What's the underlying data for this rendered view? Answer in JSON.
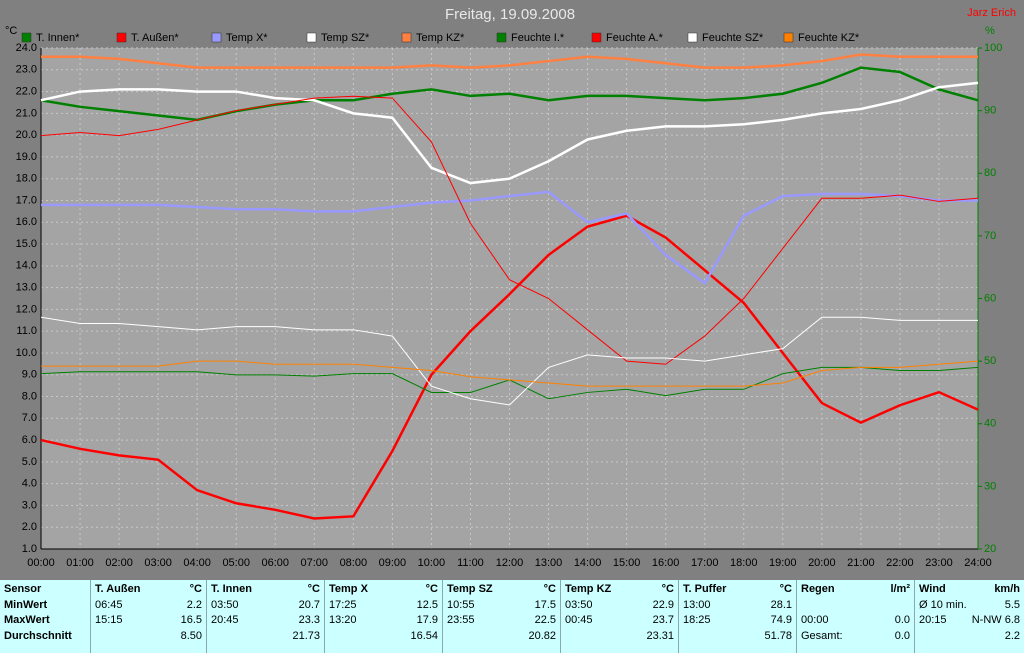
{
  "chart_data": {
    "type": "line",
    "title": "Freitag, 19.09.2008",
    "author": "Jarz Erich",
    "ylabel": "°C",
    "y2label": "%",
    "categories": [
      "00:00",
      "01:00",
      "02:00",
      "03:00",
      "04:00",
      "05:00",
      "06:00",
      "07:00",
      "08:00",
      "09:00",
      "10:00",
      "11:00",
      "12:00",
      "13:00",
      "14:00",
      "15:00",
      "16:00",
      "17:00",
      "18:00",
      "19:00",
      "20:00",
      "21:00",
      "22:00",
      "23:00",
      "24:00"
    ],
    "ylim": [
      1,
      24
    ],
    "yticks": [
      {
        "value": 1,
        "label": "1.0"
      },
      {
        "value": 2,
        "label": "2.0"
      },
      {
        "value": 3,
        "label": "3.0"
      },
      {
        "value": 4,
        "label": "4.0"
      },
      {
        "value": 5,
        "label": "5.0"
      },
      {
        "value": 6,
        "label": "6.0"
      },
      {
        "value": 7,
        "label": "7.0"
      },
      {
        "value": 8,
        "label": "8.0"
      },
      {
        "value": 9,
        "label": "9.0"
      },
      {
        "value": 10,
        "label": "10.0"
      },
      {
        "value": 11,
        "label": "11.0"
      },
      {
        "value": 12,
        "label": "12.0"
      },
      {
        "value": 13,
        "label": "13.0"
      },
      {
        "value": 14,
        "label": "14.0"
      },
      {
        "value": 15,
        "label": "15.0"
      },
      {
        "value": 16,
        "label": "16.0"
      },
      {
        "value": 17,
        "label": "17.0"
      },
      {
        "value": 18,
        "label": "18.0"
      },
      {
        "value": 19,
        "label": "19.0"
      },
      {
        "value": 20,
        "label": "20.0"
      },
      {
        "value": 21,
        "label": "21.0"
      },
      {
        "value": 22,
        "label": "22.0"
      },
      {
        "value": 23,
        "label": "23.0"
      },
      {
        "value": 24,
        "label": "24.0"
      }
    ],
    "y2lim": [
      20,
      100
    ],
    "y2ticks": [
      20,
      30,
      40,
      50,
      60,
      70,
      80,
      90,
      100
    ],
    "grid": true,
    "series": [
      {
        "name": "T. Innen*",
        "color": "#008000",
        "width": 2.5,
        "values": [
          21.6,
          21.3,
          21.1,
          20.9,
          20.7,
          21.1,
          21.4,
          21.6,
          21.6,
          21.9,
          22.1,
          21.8,
          21.9,
          21.6,
          21.8,
          21.8,
          21.7,
          21.6,
          21.7,
          21.9,
          22.4,
          23.1,
          22.9,
          22.1,
          21.6
        ]
      },
      {
        "name": "T. Außen*",
        "color": "#ff0000",
        "width": 2.5,
        "values": [
          6.0,
          5.6,
          5.3,
          5.1,
          3.7,
          3.1,
          2.8,
          2.4,
          2.5,
          5.5,
          9.0,
          11.0,
          12.7,
          14.5,
          15.8,
          16.3,
          15.3,
          13.8,
          12.3,
          10.0,
          7.7,
          6.8,
          7.6,
          8.2,
          7.4
        ]
      },
      {
        "name": "Temp X*",
        "color": "#9999ff",
        "width": 2.5,
        "values": [
          16.8,
          16.8,
          16.8,
          16.8,
          16.7,
          16.6,
          16.6,
          16.5,
          16.5,
          16.7,
          16.9,
          17.0,
          17.2,
          17.4,
          16.0,
          16.4,
          14.5,
          13.2,
          16.3,
          17.2,
          17.3,
          17.3,
          17.2,
          17.0,
          17.0
        ]
      },
      {
        "name": "Temp SZ*",
        "color": "#ffffff",
        "width": 2.5,
        "values": [
          21.6,
          22.0,
          22.1,
          22.1,
          22.0,
          22.0,
          21.7,
          21.6,
          21.0,
          20.8,
          18.5,
          17.8,
          18.0,
          18.8,
          19.8,
          20.2,
          20.4,
          20.4,
          20.5,
          20.7,
          21.0,
          21.2,
          21.6,
          22.2,
          22.4
        ]
      },
      {
        "name": "Temp KZ*",
        "color": "#ff8040",
        "width": 2.5,
        "values": [
          23.6,
          23.6,
          23.5,
          23.3,
          23.1,
          23.1,
          23.1,
          23.1,
          23.1,
          23.1,
          23.2,
          23.1,
          23.2,
          23.4,
          23.6,
          23.5,
          23.3,
          23.1,
          23.1,
          23.2,
          23.4,
          23.7,
          23.6,
          23.6,
          23.6
        ]
      },
      {
        "name": "Feuchte I.*",
        "color": "#008000",
        "width": 1,
        "axis": "y2",
        "values": [
          48,
          48.3,
          48.3,
          48.3,
          48.3,
          47.8,
          47.8,
          47.6,
          48,
          48,
          45,
          45,
          47,
          44,
          45,
          45.5,
          44.5,
          45.5,
          45.5,
          48,
          49,
          49,
          48.5,
          48.5,
          49
        ]
      },
      {
        "name": "Feuchte A.*",
        "color": "#ff0000",
        "width": 1,
        "axis": "y2",
        "values": [
          86,
          86.5,
          86,
          87,
          88.5,
          90,
          91,
          92,
          92.3,
          92,
          85,
          72,
          63,
          60,
          55,
          50,
          49.5,
          54,
          60,
          68,
          76,
          76,
          76.5,
          75.5,
          76
        ]
      },
      {
        "name": "Feuchte SZ*",
        "color": "#ffffff",
        "width": 1,
        "axis": "y2",
        "values": [
          57,
          56,
          56,
          55.5,
          55,
          55.5,
          55.5,
          55,
          55,
          54,
          46,
          44,
          43,
          49,
          51,
          50.5,
          50.5,
          50,
          51,
          52,
          57,
          57,
          56.5,
          56.5,
          56.5
        ]
      },
      {
        "name": "Feuchte KZ*",
        "color": "#ff8000",
        "width": 1,
        "axis": "y2",
        "values": [
          49.2,
          49.2,
          49.2,
          49.2,
          50,
          50,
          49.5,
          49.5,
          49.5,
          49,
          48.5,
          47.5,
          47,
          46.5,
          46,
          46,
          46,
          46,
          46,
          46.5,
          48.5,
          49,
          49,
          49.5,
          50
        ]
      }
    ]
  },
  "table": {
    "columns": [
      {
        "name": "Sensor",
        "rows": [
          [
            "MinWert"
          ],
          [
            "MaxWert"
          ],
          [
            "Durchschnitt"
          ]
        ]
      },
      {
        "name": "T. Außen",
        "unit": "°C",
        "rows": [
          [
            "06:45",
            "2.2"
          ],
          [
            "15:15",
            "16.5"
          ],
          [
            null,
            "8.50"
          ]
        ]
      },
      {
        "name": "T. Innen",
        "unit": "°C",
        "rows": [
          [
            "03:50",
            "20.7"
          ],
          [
            "20:45",
            "23.3"
          ],
          [
            null,
            "21.73"
          ]
        ]
      },
      {
        "name": "Temp X",
        "unit": "°C",
        "rows": [
          [
            "17:25",
            "12.5"
          ],
          [
            "13:20",
            "17.9"
          ],
          [
            null,
            "16.54"
          ]
        ]
      },
      {
        "name": "Temp SZ",
        "unit": "°C",
        "rows": [
          [
            "10:55",
            "17.5"
          ],
          [
            "23:55",
            "22.5"
          ],
          [
            null,
            "20.82"
          ]
        ]
      },
      {
        "name": "Temp KZ",
        "unit": "°C",
        "rows": [
          [
            "03:50",
            "22.9"
          ],
          [
            "00:45",
            "23.7"
          ],
          [
            null,
            "23.31"
          ]
        ]
      },
      {
        "name": "T. Puffer",
        "unit": "°C",
        "rows": [
          [
            "13:00",
            "28.1"
          ],
          [
            "18:25",
            "74.9"
          ],
          [
            null,
            "51.78"
          ]
        ]
      },
      {
        "name": "Regen",
        "unit": "l/m²",
        "rows": [
          [
            null,
            null
          ],
          [
            "00:00",
            "0.0"
          ],
          [
            "Gesamt:",
            "0.0"
          ]
        ]
      },
      {
        "name": "Wind",
        "unit": "km/h",
        "rows": [
          [
            "Ø 10 min.",
            "5.5"
          ],
          [
            "20:15",
            "N-NW 6.8"
          ],
          [
            null,
            "2.2"
          ]
        ]
      }
    ]
  }
}
